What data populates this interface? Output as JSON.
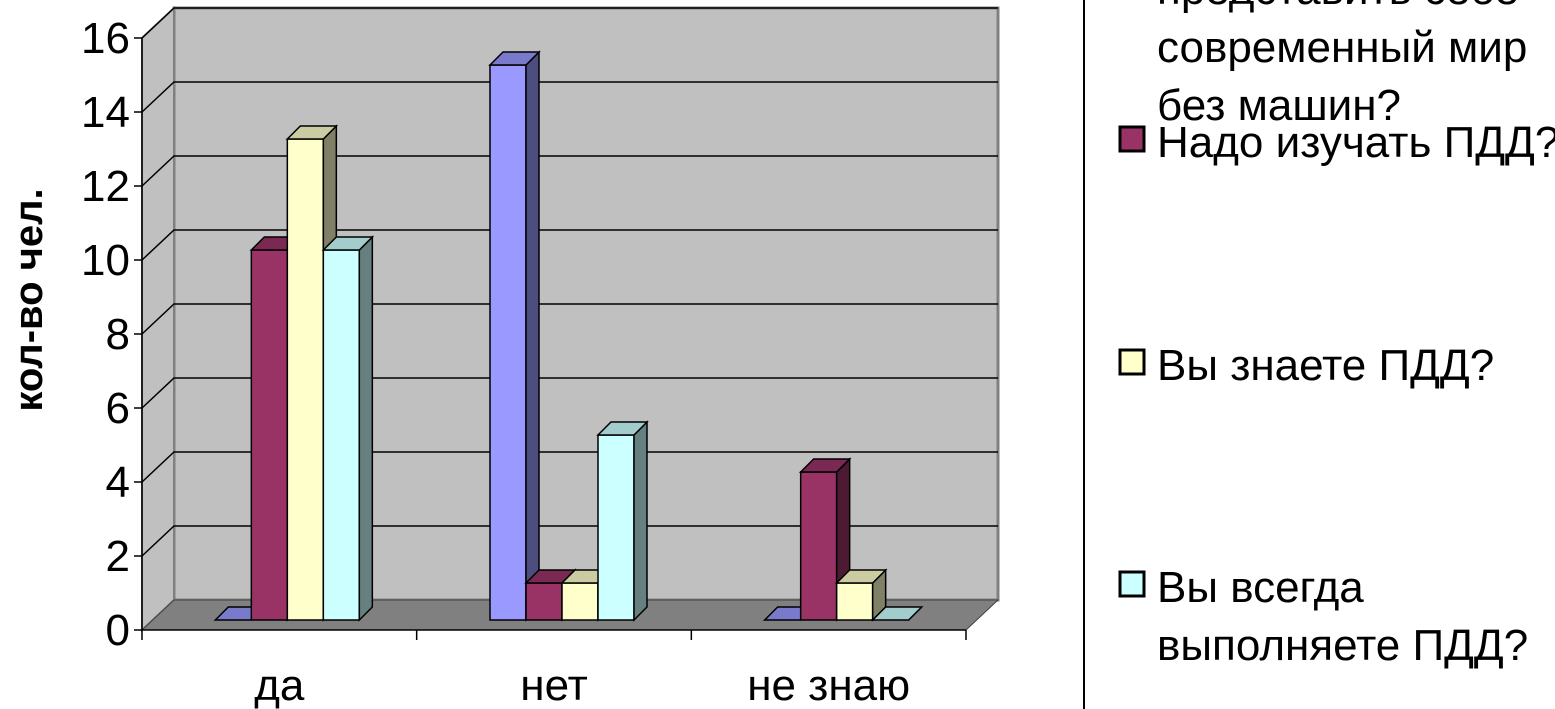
{
  "chart_data": {
    "type": "bar",
    "categories": [
      "да",
      "нет",
      "не знаю"
    ],
    "series": [
      {
        "name": "Вы можете представить себе современный мир без машин?",
        "values": [
          0,
          15,
          0
        ],
        "color": "#9999ff"
      },
      {
        "name": "Надо изучать ПДД?",
        "values": [
          10,
          1,
          4
        ],
        "color": "#993366"
      },
      {
        "name": "Вы знаете ПДД?",
        "values": [
          13,
          1,
          1
        ],
        "color": "#ffffcc"
      },
      {
        "name": "Вы всегда выполняете ПДД?",
        "values": [
          10,
          5,
          0
        ],
        "color": "#ccffff"
      }
    ],
    "title": "",
    "xlabel": "",
    "ylabel": "кол-во чел.",
    "ylim": [
      0,
      16
    ],
    "yticks": [
      "0",
      "2",
      "4",
      "6",
      "8",
      "10",
      "12",
      "14",
      "16"
    ],
    "grid": true,
    "legend_position": "right",
    "wall_color": "#c0c0c0",
    "floor_color": "#808080"
  },
  "legend": {
    "items": [
      {
        "lines": [
          "представить себе",
          "современный мир",
          "без машин?"
        ],
        "color": "#9999ff",
        "show_swatch": false
      },
      {
        "lines": [
          "Надо изучать ПДД?"
        ],
        "color": "#993366",
        "show_swatch": true
      },
      {
        "lines": [
          "Вы знаете ПДД?"
        ],
        "color": "#ffffcc",
        "show_swatch": true
      },
      {
        "lines": [
          "Вы всегда",
          "выполняете ПДД?"
        ],
        "color": "#ccffff",
        "show_swatch": true
      }
    ]
  }
}
